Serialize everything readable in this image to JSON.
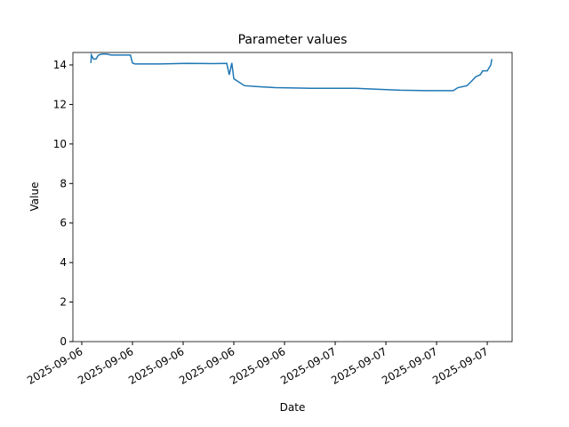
{
  "chart_data": {
    "type": "line",
    "title": "Parameter values",
    "xlabel": "Date",
    "ylabel": "Value",
    "series": [
      {
        "name": "Value",
        "color": "#1f77b4",
        "x": [
          0.18,
          0.19,
          0.23,
          0.28,
          0.33,
          0.4,
          0.49,
          0.58,
          0.96,
          1.0,
          1.05,
          1.54,
          2.07,
          2.6,
          2.86,
          2.91,
          2.96,
          3.0,
          3.12,
          3.21,
          3.47,
          3.82,
          4.53,
          5.4,
          5.75,
          6.28,
          6.81,
          7.33,
          7.42,
          7.6,
          7.68,
          7.77,
          7.86,
          7.91,
          8.0,
          8.07,
          8.09
        ],
        "values": [
          14.1,
          14.5,
          14.3,
          14.3,
          14.5,
          14.55,
          14.55,
          14.5,
          14.5,
          14.1,
          14.05,
          14.05,
          14.08,
          14.07,
          14.08,
          13.5,
          14.1,
          13.3,
          13.1,
          12.95,
          12.9,
          12.85,
          12.82,
          12.82,
          12.78,
          12.72,
          12.7,
          12.7,
          12.85,
          12.95,
          13.15,
          13.4,
          13.5,
          13.7,
          13.7,
          14.0,
          14.3
        ]
      }
    ],
    "xlim": [
      -0.175,
      8.49
    ],
    "xticks": [
      {
        "value": 0,
        "label": "2025-09-06"
      },
      {
        "value": 1,
        "label": "2025-09-06"
      },
      {
        "value": 2,
        "label": "2025-09-06"
      },
      {
        "value": 3,
        "label": "2025-09-06"
      },
      {
        "value": 4,
        "label": "2025-09-06"
      },
      {
        "value": 5,
        "label": "2025-09-07"
      },
      {
        "value": 6,
        "label": "2025-09-07"
      },
      {
        "value": 7,
        "label": "2025-09-07"
      },
      {
        "value": 8,
        "label": "2025-09-07"
      }
    ],
    "ylim": [
      0,
      14.63
    ],
    "yticks": [
      0,
      2,
      4,
      6,
      8,
      10,
      12,
      14
    ]
  }
}
